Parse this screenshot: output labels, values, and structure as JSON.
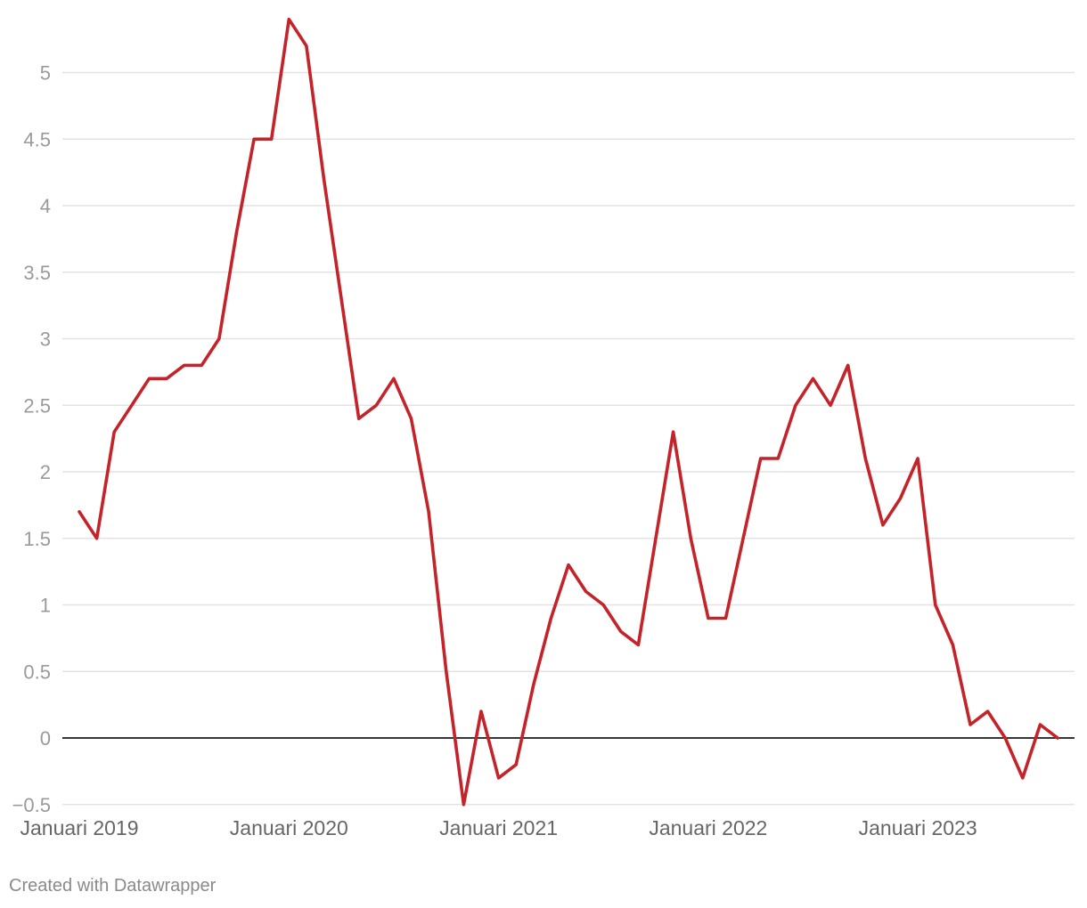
{
  "chart_data": {
    "type": "line",
    "title": "",
    "xlabel": "",
    "ylabel": "",
    "x_start": "2019-01",
    "x_end": "2023-09",
    "x_ticks": [
      {
        "date": "2019-01",
        "label": "Januari 2019"
      },
      {
        "date": "2020-01",
        "label": "Januari 2020"
      },
      {
        "date": "2021-01",
        "label": "Januari 2021"
      },
      {
        "date": "2022-01",
        "label": "Januari 2022"
      },
      {
        "date": "2023-01",
        "label": "Januari 2023"
      }
    ],
    "y_ticks": [
      {
        "value": -0.5,
        "label": "−0.5"
      },
      {
        "value": 0,
        "label": "0"
      },
      {
        "value": 0.5,
        "label": "0.5"
      },
      {
        "value": 1,
        "label": "1"
      },
      {
        "value": 1.5,
        "label": "1.5"
      },
      {
        "value": 2,
        "label": "2"
      },
      {
        "value": 2.5,
        "label": "2.5"
      },
      {
        "value": 3,
        "label": "3"
      },
      {
        "value": 3.5,
        "label": "3.5"
      },
      {
        "value": 4,
        "label": "4"
      },
      {
        "value": 4.5,
        "label": "4.5"
      },
      {
        "value": 5,
        "label": "5"
      }
    ],
    "ylim": [
      -0.5,
      5.4
    ],
    "grid": true,
    "series": [
      {
        "color": "#c4232a",
        "points": [
          {
            "x": "2019-01",
            "y": 1.7
          },
          {
            "x": "2019-02",
            "y": 1.5
          },
          {
            "x": "2019-03",
            "y": 2.3
          },
          {
            "x": "2019-04",
            "y": 2.5
          },
          {
            "x": "2019-05",
            "y": 2.7
          },
          {
            "x": "2019-06",
            "y": 2.7
          },
          {
            "x": "2019-07",
            "y": 2.8
          },
          {
            "x": "2019-08",
            "y": 2.8
          },
          {
            "x": "2019-09",
            "y": 3.0
          },
          {
            "x": "2019-10",
            "y": 3.8
          },
          {
            "x": "2019-11",
            "y": 4.5
          },
          {
            "x": "2019-12",
            "y": 4.5
          },
          {
            "x": "2020-01",
            "y": 5.4
          },
          {
            "x": "2020-02",
            "y": 5.2
          },
          {
            "x": "2020-03",
            "y": 4.2
          },
          {
            "x": "2020-04",
            "y": 3.3
          },
          {
            "x": "2020-05",
            "y": 2.4
          },
          {
            "x": "2020-06",
            "y": 2.5
          },
          {
            "x": "2020-07",
            "y": 2.7
          },
          {
            "x": "2020-08",
            "y": 2.4
          },
          {
            "x": "2020-09",
            "y": 1.7
          },
          {
            "x": "2020-10",
            "y": 0.5
          },
          {
            "x": "2020-11",
            "y": -0.5
          },
          {
            "x": "2020-12",
            "y": 0.2
          },
          {
            "x": "2021-01",
            "y": -0.3
          },
          {
            "x": "2021-02",
            "y": -0.2
          },
          {
            "x": "2021-03",
            "y": 0.4
          },
          {
            "x": "2021-04",
            "y": 0.9
          },
          {
            "x": "2021-05",
            "y": 1.3
          },
          {
            "x": "2021-06",
            "y": 1.1
          },
          {
            "x": "2021-07",
            "y": 1.0
          },
          {
            "x": "2021-08",
            "y": 0.8
          },
          {
            "x": "2021-09",
            "y": 0.7
          },
          {
            "x": "2021-10",
            "y": 1.5
          },
          {
            "x": "2021-11",
            "y": 2.3
          },
          {
            "x": "2021-12",
            "y": 1.5
          },
          {
            "x": "2022-01",
            "y": 0.9
          },
          {
            "x": "2022-02",
            "y": 0.9
          },
          {
            "x": "2022-03",
            "y": 1.5
          },
          {
            "x": "2022-04",
            "y": 2.1
          },
          {
            "x": "2022-05",
            "y": 2.1
          },
          {
            "x": "2022-06",
            "y": 2.5
          },
          {
            "x": "2022-07",
            "y": 2.7
          },
          {
            "x": "2022-08",
            "y": 2.5
          },
          {
            "x": "2022-09",
            "y": 2.8
          },
          {
            "x": "2022-10",
            "y": 2.1
          },
          {
            "x": "2022-11",
            "y": 1.6
          },
          {
            "x": "2022-12",
            "y": 1.8
          },
          {
            "x": "2023-01",
            "y": 2.1
          },
          {
            "x": "2023-02",
            "y": 1.0
          },
          {
            "x": "2023-03",
            "y": 0.7
          },
          {
            "x": "2023-04",
            "y": 0.1
          },
          {
            "x": "2023-05",
            "y": 0.2
          },
          {
            "x": "2023-06",
            "y": 0.0
          },
          {
            "x": "2023-07",
            "y": -0.3
          },
          {
            "x": "2023-08",
            "y": 0.1
          },
          {
            "x": "2023-09",
            "y": 0.0
          }
        ]
      }
    ]
  },
  "footer": {
    "credit": "Created with Datawrapper"
  }
}
